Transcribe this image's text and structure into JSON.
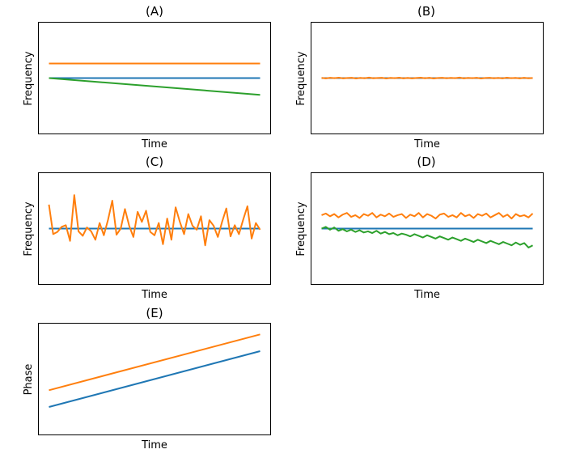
{
  "colors": {
    "blue": "#1f77b4",
    "orange": "#ff7f0e",
    "green": "#2ca02c"
  },
  "chart_data": [
    {
      "type": "line",
      "title": "(A)",
      "xlabel": "Time",
      "ylabel": "Frequency",
      "ylim": [
        -1,
        1
      ],
      "grid": false,
      "series": [
        {
          "color": "#1f77b4",
          "values": [
            0,
            0
          ]
        },
        {
          "color": "#ff7f0e",
          "values": [
            0.26,
            0.26
          ]
        },
        {
          "color": "#2ca02c",
          "values": [
            0,
            -0.3
          ]
        }
      ]
    },
    {
      "type": "line",
      "title": "(B)",
      "xlabel": "Time",
      "ylabel": "Frequency",
      "ylim": [
        -1,
        1
      ],
      "grid": false,
      "series": [
        {
          "color": "#1f77b4",
          "values": [
            0,
            0
          ]
        },
        {
          "color": "#ff7f0e",
          "values": [
            0.003,
            -0.005,
            0.006,
            -0.002,
            0.008,
            -0.006,
            0.002,
            0.005,
            -0.007,
            0.004,
            -0.003,
            0.009,
            -0.004,
            0.001,
            0.006,
            -0.008,
            0.003,
            -0.001,
            0.007,
            -0.005,
            0.004,
            -0.006,
            0.002,
            0.008,
            -0.003,
            0.005,
            -0.007,
            0.001,
            0.006,
            -0.004,
            0.003,
            -0.002,
            0.009,
            -0.006,
            0.004,
            -0.001,
            0.005,
            -0.008,
            0.002,
            0.006,
            -0.003,
            0.004,
            -0.005,
            0.007,
            -0.002,
            0.003,
            -0.006,
            0.005,
            -0.004,
            0.002
          ]
        }
      ]
    },
    {
      "type": "line",
      "title": "(C)",
      "xlabel": "Time",
      "ylabel": "Frequency",
      "ylim": [
        -1,
        1
      ],
      "grid": false,
      "series": [
        {
          "color": "#1f77b4",
          "values": [
            0,
            0
          ]
        },
        {
          "color": "#ff7f0e",
          "values": [
            0.43,
            -0.1,
            -0.06,
            0.03,
            0.06,
            -0.22,
            0.6,
            -0.05,
            -0.13,
            0.02,
            -0.05,
            -0.2,
            0.1,
            -0.12,
            0.16,
            0.5,
            -0.11,
            0.0,
            0.35,
            0.05,
            -0.15,
            0.3,
            0.12,
            0.32,
            -0.06,
            -0.12,
            0.1,
            -0.28,
            0.18,
            -0.2,
            0.38,
            0.12,
            -0.1,
            0.26,
            0.05,
            -0.02,
            0.22,
            -0.3,
            0.15,
            0.05,
            -0.15,
            0.12,
            0.36,
            -0.14,
            0.06,
            -0.1,
            0.16,
            0.4,
            -0.18,
            0.1,
            -0.02
          ]
        }
      ]
    },
    {
      "type": "line",
      "title": "(D)",
      "xlabel": "Time",
      "ylabel": "Frequency",
      "ylim": [
        -1,
        1
      ],
      "grid": false,
      "series": [
        {
          "color": "#1f77b4",
          "values": [
            0,
            0
          ]
        },
        {
          "color": "#ff7f0e",
          "values": [
            0.24,
            0.27,
            0.22,
            0.26,
            0.2,
            0.25,
            0.28,
            0.21,
            0.24,
            0.19,
            0.26,
            0.23,
            0.28,
            0.2,
            0.25,
            0.22,
            0.27,
            0.21,
            0.24,
            0.26,
            0.19,
            0.25,
            0.22,
            0.28,
            0.2,
            0.26,
            0.23,
            0.18,
            0.25,
            0.27,
            0.21,
            0.24,
            0.2,
            0.28,
            0.22,
            0.25,
            0.19,
            0.26,
            0.23,
            0.27,
            0.2,
            0.24,
            0.28,
            0.21,
            0.25,
            0.18,
            0.26,
            0.22,
            0.24,
            0.2,
            0.27
          ]
        },
        {
          "color": "#2ca02c",
          "values": [
            0.0,
            0.03,
            -0.02,
            0.02,
            -0.04,
            -0.01,
            -0.05,
            -0.02,
            -0.06,
            -0.03,
            -0.07,
            -0.05,
            -0.08,
            -0.04,
            -0.09,
            -0.06,
            -0.1,
            -0.08,
            -0.12,
            -0.09,
            -0.11,
            -0.14,
            -0.1,
            -0.13,
            -0.16,
            -0.12,
            -0.15,
            -0.18,
            -0.14,
            -0.17,
            -0.2,
            -0.16,
            -0.19,
            -0.22,
            -0.18,
            -0.21,
            -0.24,
            -0.2,
            -0.23,
            -0.26,
            -0.22,
            -0.25,
            -0.28,
            -0.24,
            -0.27,
            -0.3,
            -0.25,
            -0.29,
            -0.26,
            -0.34,
            -0.3
          ]
        }
      ]
    },
    {
      "type": "line",
      "title": "(E)",
      "xlabel": "Time",
      "ylabel": "Phase",
      "ylim": [
        -1,
        1
      ],
      "grid": false,
      "series": [
        {
          "color": "#1f77b4",
          "values": [
            -0.5,
            0.5
          ]
        },
        {
          "color": "#ff7f0e",
          "values": [
            -0.2,
            0.8
          ]
        }
      ]
    }
  ]
}
